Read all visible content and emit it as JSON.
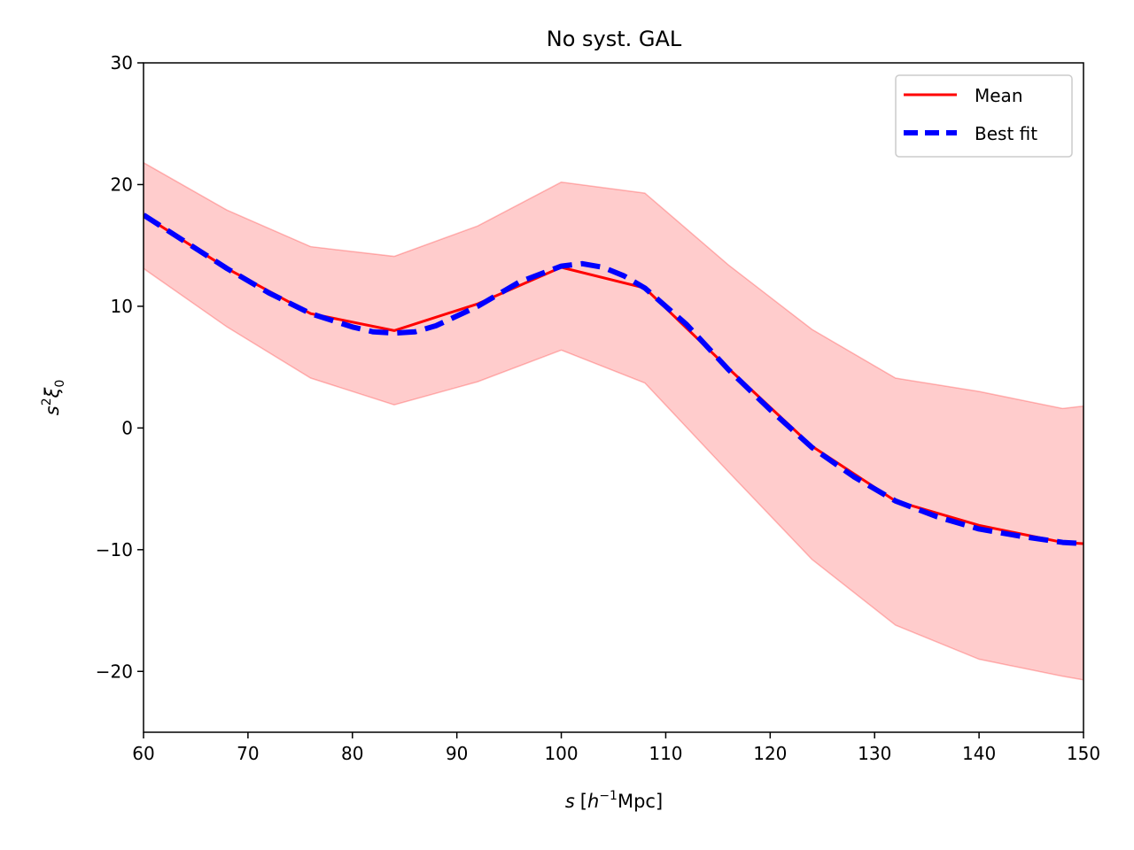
{
  "chart_data": {
    "type": "line",
    "title": "No syst. GAL",
    "xlabel": {
      "var": "s",
      "open": "[",
      "h": "h",
      "exp": "−1",
      "unit": "Mpc",
      "close": "]"
    },
    "ylabel": {
      "base": "s",
      "sup": "2",
      "xi": "ξ",
      "sub": "0"
    },
    "xlim": [
      60,
      150
    ],
    "ylim": [
      -25,
      30
    ],
    "xticks": [
      60,
      70,
      80,
      90,
      100,
      110,
      120,
      130,
      140,
      150
    ],
    "xtick_labels": [
      "60",
      "70",
      "80",
      "90",
      "100",
      "110",
      "120",
      "130",
      "140",
      "150"
    ],
    "yticks": [
      -20,
      -10,
      0,
      10,
      20,
      30
    ],
    "ytick_labels": [
      "−20",
      "−10",
      "0",
      "10",
      "20",
      "30"
    ],
    "grid": false,
    "legend_position": "top-right",
    "band": {
      "color": "#ff0000",
      "x": [
        60,
        68,
        76,
        84,
        92,
        100,
        108,
        116,
        124,
        132,
        140,
        148,
        150
      ],
      "upper": [
        21.8,
        17.9,
        14.9,
        14.1,
        16.6,
        20.2,
        19.3,
        13.4,
        8.1,
        4.1,
        3.0,
        1.6,
        1.8
      ],
      "lower": [
        13.1,
        8.3,
        4.1,
        1.9,
        3.8,
        6.4,
        3.7,
        -3.6,
        -10.8,
        -16.2,
        -19.0,
        -20.4,
        -20.7
      ]
    },
    "series": [
      {
        "name": "Mean",
        "color": "#ff0000",
        "style": "solid",
        "x": [
          60,
          68,
          76,
          84,
          92,
          100,
          108,
          116,
          124,
          132,
          140,
          148,
          150
        ],
        "y": [
          17.5,
          13.1,
          9.4,
          8.0,
          10.2,
          13.2,
          11.5,
          4.9,
          -1.5,
          -6.0,
          -8.0,
          -9.4,
          -9.5
        ]
      },
      {
        "name": "Best fit",
        "color": "#0000ff",
        "style": "dashed",
        "x": [
          60,
          64,
          68,
          72,
          76,
          80,
          82,
          84,
          86,
          88,
          92,
          96,
          100,
          102,
          104,
          106,
          108,
          112,
          116,
          120,
          124,
          128,
          132,
          136,
          140,
          144,
          148,
          150
        ],
        "y": [
          17.5,
          15.3,
          13.1,
          11.1,
          9.4,
          8.3,
          7.9,
          7.8,
          7.9,
          8.4,
          10.0,
          12.0,
          13.3,
          13.5,
          13.2,
          12.5,
          11.5,
          8.5,
          4.8,
          1.5,
          -1.6,
          -4.0,
          -6.0,
          -7.3,
          -8.3,
          -8.9,
          -9.4,
          -9.5
        ]
      }
    ]
  }
}
